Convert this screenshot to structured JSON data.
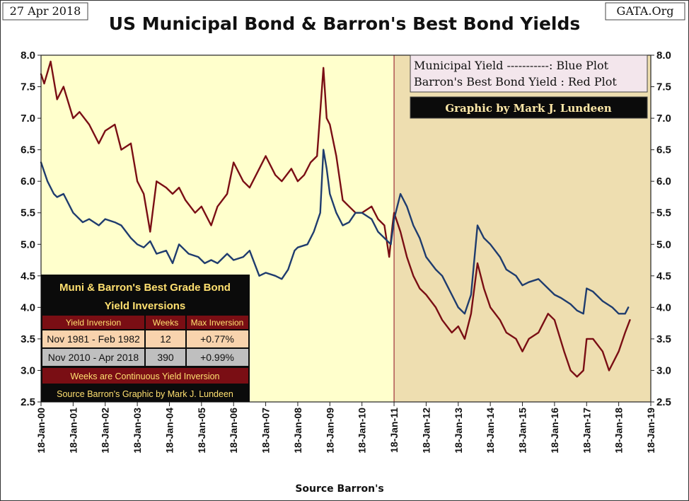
{
  "header": {
    "date": "27 Apr 2018",
    "title": "US Municipal Bond & Barron's Best Bond Yields",
    "site": "GATA.Org"
  },
  "legend": {
    "line1": "Municipal  Yield -----------: Blue Plot",
    "line2": "Barron's Best Bond  Yield : Red Plot",
    "credit": "Graphic by Mark J. Lundeen"
  },
  "colors": {
    "page_bg": "#ffffff",
    "plot_bg_left": "#ffffcc",
    "plot_bg_right": "#eedeb0",
    "municipal": "#1f3c6e",
    "barrons": "#7a0e14",
    "divider": "#a0303a",
    "table_bg": "#0b0b0b",
    "table_head": "#7a0e14",
    "row1_bg": "#f8d3ad",
    "row2_bg": "#bfbfbf"
  },
  "table": {
    "title_line1": "Muni & Barron's Best Grade Bond",
    "title_line2": "Yield Inversions",
    "headers": [
      "Yield Inversion",
      "Weeks",
      "Max Inversion"
    ],
    "rows": [
      [
        "Nov 1981 - Feb 1982",
        "12",
        "+0.77%"
      ],
      [
        "Nov 2010 - Apr 2018",
        "390",
        "+0.99%"
      ]
    ],
    "footer1": "Weeks are Continuous Yield Inversion",
    "footer2": "Source Barron's Graphic by Mark J. Lundeen"
  },
  "chart_data": {
    "type": "line",
    "title": "US Municipal Bond & Barron's Best Bond Yields",
    "xlabel": "Source Barron's",
    "ylabel": "",
    "ylim": [
      2.5,
      8.0
    ],
    "yticks": [
      "2.5",
      "3.0",
      "3.5",
      "4.0",
      "4.5",
      "5.0",
      "5.5",
      "6.0",
      "6.5",
      "7.0",
      "7.5",
      "8.0"
    ],
    "xlim": [
      2000.0,
      2019.0
    ],
    "xtick_labels": [
      "18-Jan-00",
      "18-Jan-01",
      "18-Jan-02",
      "18-Jan-03",
      "18-Jan-04",
      "18-Jan-05",
      "18-Jan-06",
      "18-Jan-07",
      "18-Jan-08",
      "18-Jan-09",
      "18-Jan-10",
      "18-Jan-11",
      "18-Jan-12",
      "18-Jan-13",
      "18-Jan-14",
      "18-Jan-15",
      "18-Jan-16",
      "18-Jan-17",
      "18-Jan-18",
      "18-Jan-19"
    ],
    "shaded_from": 2011.0,
    "grid": false,
    "legend_position": "top-right",
    "series": [
      {
        "name": "Municipal Yield",
        "color": "#1f3c6e",
        "x": [
          2000.0,
          2000.2,
          2000.4,
          2000.5,
          2000.7,
          2001.0,
          2001.3,
          2001.5,
          2001.8,
          2002.0,
          2002.3,
          2002.5,
          2002.8,
          2003.0,
          2003.2,
          2003.4,
          2003.6,
          2003.9,
          2004.1,
          2004.3,
          2004.4,
          2004.6,
          2004.9,
          2005.1,
          2005.3,
          2005.5,
          2005.8,
          2006.0,
          2006.3,
          2006.5,
          2006.8,
          2007.0,
          2007.3,
          2007.5,
          2007.7,
          2007.9,
          2008.0,
          2008.3,
          2008.5,
          2008.7,
          2008.8,
          2008.9,
          2009.0,
          2009.2,
          2009.4,
          2009.6,
          2009.8,
          2010.0,
          2010.3,
          2010.5,
          2010.7,
          2010.9,
          2011.0,
          2011.2,
          2011.4,
          2011.6,
          2011.8,
          2012.0,
          2012.3,
          2012.5,
          2012.8,
          2013.0,
          2013.2,
          2013.4,
          2013.6,
          2013.8,
          2014.0,
          2014.3,
          2014.5,
          2014.8,
          2015.0,
          2015.2,
          2015.5,
          2015.8,
          2016.0,
          2016.2,
          2016.5,
          2016.7,
          2016.9,
          2017.0,
          2017.2,
          2017.5,
          2017.8,
          2018.0,
          2018.2,
          2018.3
        ],
        "values": [
          6.3,
          6.0,
          5.8,
          5.75,
          5.8,
          5.5,
          5.35,
          5.4,
          5.3,
          5.4,
          5.35,
          5.3,
          5.1,
          5.0,
          4.95,
          5.05,
          4.85,
          4.9,
          4.7,
          5.0,
          4.95,
          4.85,
          4.8,
          4.7,
          4.75,
          4.7,
          4.85,
          4.75,
          4.8,
          4.9,
          4.5,
          4.55,
          4.5,
          4.45,
          4.6,
          4.9,
          4.95,
          5.0,
          5.2,
          5.5,
          6.5,
          6.2,
          5.8,
          5.5,
          5.3,
          5.35,
          5.5,
          5.5,
          5.4,
          5.2,
          5.1,
          5.0,
          5.4,
          5.8,
          5.6,
          5.3,
          5.1,
          4.8,
          4.6,
          4.5,
          4.2,
          4.0,
          3.9,
          4.2,
          5.3,
          5.1,
          5.0,
          4.8,
          4.6,
          4.5,
          4.35,
          4.4,
          4.45,
          4.3,
          4.2,
          4.15,
          4.05,
          3.95,
          3.9,
          4.3,
          4.25,
          4.1,
          4.0,
          3.9,
          3.9,
          4.0
        ]
      },
      {
        "name": "Barron's Best Bond Yield",
        "color": "#7a0e14",
        "x": [
          2000.0,
          2000.1,
          2000.3,
          2000.5,
          2000.7,
          2001.0,
          2001.2,
          2001.5,
          2001.8,
          2002.0,
          2002.3,
          2002.5,
          2002.8,
          2003.0,
          2003.2,
          2003.4,
          2003.6,
          2003.9,
          2004.1,
          2004.3,
          2004.5,
          2004.8,
          2005.0,
          2005.3,
          2005.5,
          2005.8,
          2006.0,
          2006.3,
          2006.5,
          2006.8,
          2007.0,
          2007.3,
          2007.5,
          2007.8,
          2008.0,
          2008.2,
          2008.4,
          2008.6,
          2008.8,
          2008.9,
          2009.0,
          2009.2,
          2009.4,
          2009.6,
          2009.8,
          2010.0,
          2010.3,
          2010.5,
          2010.7,
          2010.85,
          2010.95,
          2011.0,
          2011.2,
          2011.4,
          2011.6,
          2011.8,
          2012.0,
          2012.3,
          2012.5,
          2012.8,
          2013.0,
          2013.2,
          2013.4,
          2013.6,
          2013.8,
          2014.0,
          2014.3,
          2014.5,
          2014.8,
          2015.0,
          2015.2,
          2015.5,
          2015.8,
          2016.0,
          2016.3,
          2016.5,
          2016.7,
          2016.9,
          2017.0,
          2017.2,
          2017.5,
          2017.7,
          2017.9,
          2018.0,
          2018.2,
          2018.35
        ],
        "values": [
          7.7,
          7.55,
          7.9,
          7.3,
          7.5,
          7.0,
          7.1,
          6.9,
          6.6,
          6.8,
          6.9,
          6.5,
          6.6,
          6.0,
          5.8,
          5.2,
          6.0,
          5.9,
          5.8,
          5.9,
          5.7,
          5.5,
          5.6,
          5.3,
          5.6,
          5.8,
          6.3,
          6.0,
          5.9,
          6.2,
          6.4,
          6.1,
          6.0,
          6.2,
          6.0,
          6.1,
          6.3,
          6.4,
          7.8,
          7.0,
          6.9,
          6.4,
          5.7,
          5.6,
          5.5,
          5.5,
          5.6,
          5.4,
          5.3,
          4.8,
          5.3,
          5.5,
          5.2,
          4.8,
          4.5,
          4.3,
          4.2,
          4.0,
          3.8,
          3.6,
          3.7,
          3.5,
          3.9,
          4.7,
          4.3,
          4.0,
          3.8,
          3.6,
          3.5,
          3.3,
          3.5,
          3.6,
          3.9,
          3.8,
          3.3,
          3.0,
          2.9,
          3.0,
          3.5,
          3.5,
          3.3,
          3.0,
          3.2,
          3.3,
          3.6,
          3.8
        ]
      }
    ]
  }
}
